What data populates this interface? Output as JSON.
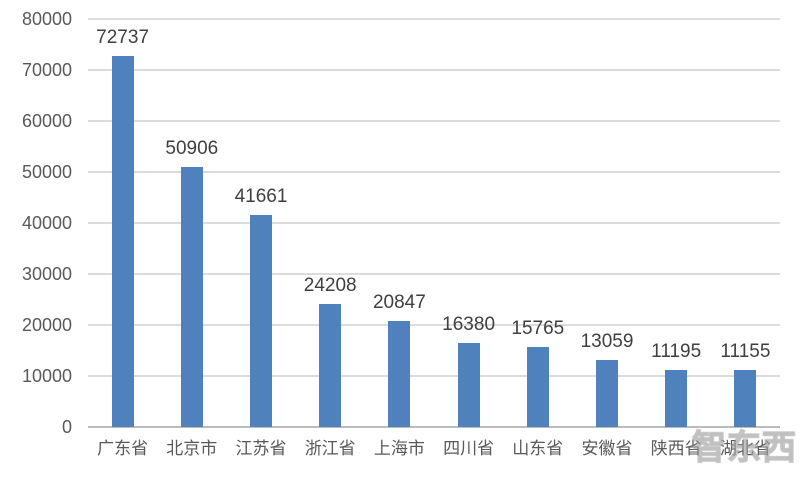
{
  "chart_data": {
    "type": "bar",
    "title": "",
    "xlabel": "",
    "ylabel": "",
    "categories": [
      "广东省",
      "北京市",
      "江苏省",
      "浙江省",
      "上海市",
      "四川省",
      "山东省",
      "安徽省",
      "陕西省",
      "湖北省"
    ],
    "values": [
      72737,
      50906,
      41661,
      24208,
      20847,
      16380,
      15765,
      13059,
      11195,
      11155
    ],
    "data_labels": [
      "72737",
      "50906",
      "41661",
      "24208",
      "20847",
      "16380",
      "15765",
      "13059",
      "11195",
      "11155"
    ],
    "ylim": [
      0,
      80000
    ],
    "yticks": [
      0,
      10000,
      20000,
      30000,
      40000,
      50000,
      60000,
      70000,
      80000
    ],
    "ytick_labels": [
      "0",
      "10000",
      "20000",
      "30000",
      "40000",
      "50000",
      "60000",
      "70000",
      "80000"
    ],
    "grid": true,
    "legend": false,
    "colors": {
      "bar": "#4F81BD",
      "gridline": "#DCDCDC",
      "axis_line": "#BBBBBB",
      "tick_label": "#595959",
      "data_label": "#3F3F3F",
      "background": "#FFFFFF"
    }
  },
  "watermark": {
    "text": "智东西"
  }
}
